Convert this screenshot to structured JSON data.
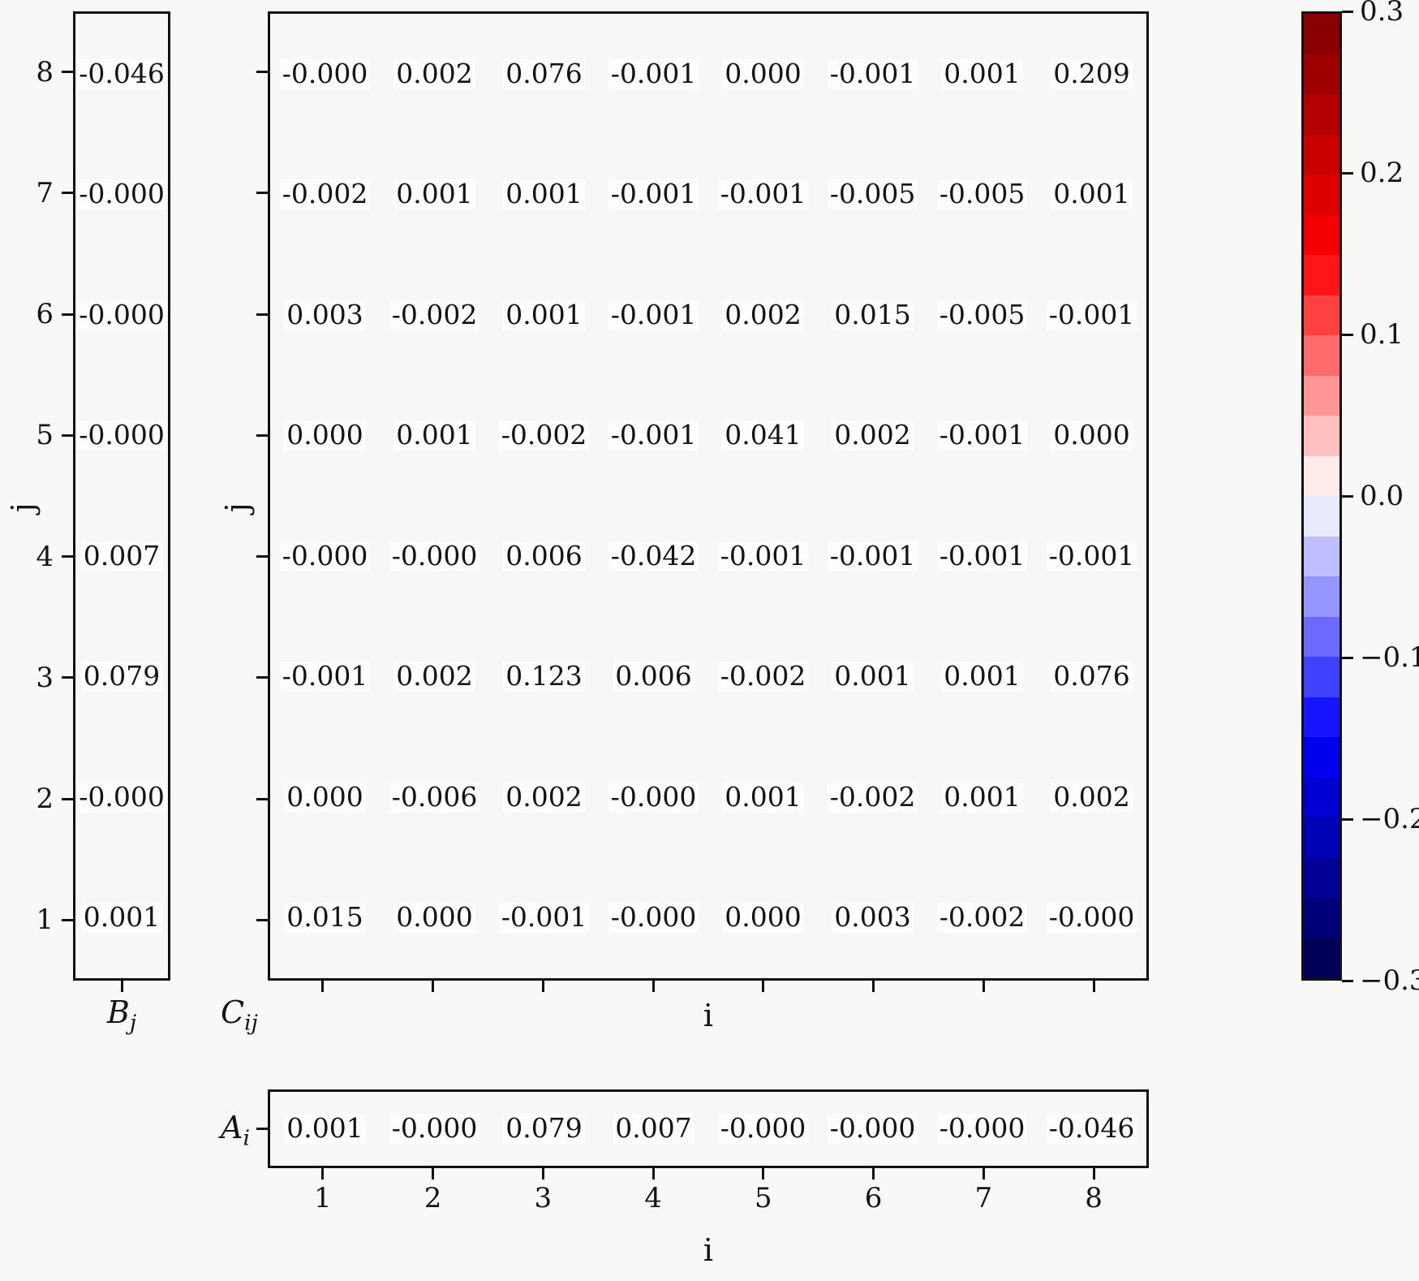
{
  "figure": {
    "background": "#f8f8f6",
    "panel_background": "#f7f7f5",
    "spine_color": "#111111",
    "text_color": "#141414",
    "annotation_bbox_color": "#fdfdfc"
  },
  "left_panel": {
    "label_base": "B",
    "label_sub": "j",
    "ylabel": "j",
    "ytick_labels": [
      "8",
      "7",
      "6",
      "5",
      "4",
      "3",
      "2",
      "1"
    ],
    "values": [
      "-0.046",
      "-0.000",
      "-0.000",
      "-0.000",
      "0.007",
      "0.079",
      "-0.000",
      "0.001"
    ]
  },
  "matrix_panel": {
    "label_base": "C",
    "label_sub": "ij",
    "ylabel": "j",
    "xlabel": "i",
    "rows": [
      [
        "-0.000",
        "0.002",
        "0.076",
        "-0.001",
        "0.000",
        "-0.001",
        "0.001",
        "0.209"
      ],
      [
        "-0.002",
        "0.001",
        "0.001",
        "-0.001",
        "-0.001",
        "-0.005",
        "-0.005",
        "0.001"
      ],
      [
        "0.003",
        "-0.002",
        "0.001",
        "-0.001",
        "0.002",
        "0.015",
        "-0.005",
        "-0.001"
      ],
      [
        "0.000",
        "0.001",
        "-0.002",
        "-0.001",
        "0.041",
        "0.002",
        "-0.001",
        "0.000"
      ],
      [
        "-0.000",
        "-0.000",
        "0.006",
        "-0.042",
        "-0.001",
        "-0.001",
        "-0.001",
        "-0.001"
      ],
      [
        "-0.001",
        "0.002",
        "0.123",
        "0.006",
        "-0.002",
        "0.001",
        "0.001",
        "0.076"
      ],
      [
        "0.000",
        "-0.006",
        "0.002",
        "-0.000",
        "0.001",
        "-0.002",
        "0.001",
        "0.002"
      ],
      [
        "0.015",
        "0.000",
        "-0.001",
        "-0.000",
        "0.000",
        "0.003",
        "-0.002",
        "-0.000"
      ]
    ]
  },
  "bottom_panel": {
    "label_base": "A",
    "label_sub": "i",
    "xlabel": "i",
    "xtick_labels": [
      "1",
      "2",
      "3",
      "4",
      "5",
      "6",
      "7",
      "8"
    ],
    "values": [
      "0.001",
      "-0.000",
      "0.079",
      "0.007",
      "-0.000",
      "-0.000",
      "-0.000",
      "-0.046"
    ]
  },
  "colorbar": {
    "tick_labels": [
      "0.3",
      "0.2",
      "0.1",
      "0.0",
      "−0.1",
      "−0.2",
      "−0.3"
    ],
    "colors_top_to_bottom": [
      "#8a0000",
      "#9f0000",
      "#b50000",
      "#ca0000",
      "#df0000",
      "#f40000",
      "#ff1515",
      "#ff4040",
      "#ff6a6a",
      "#ff9595",
      "#ffbfbf",
      "#ffeaea",
      "#eaeaff",
      "#bfbfff",
      "#9595ff",
      "#6a6aff",
      "#4040ff",
      "#1515ff",
      "#0000f0",
      "#0000d2",
      "#0000b5",
      "#000097",
      "#000079",
      "#00005b"
    ]
  },
  "chart_data": {
    "type": "heatmap",
    "title": "",
    "xlabel": "i",
    "ylabel": "j",
    "x": [
      1,
      2,
      3,
      4,
      5,
      6,
      7,
      8
    ],
    "y_top_to_bottom": [
      8,
      7,
      6,
      5,
      4,
      3,
      2,
      1
    ],
    "colormap": "seismic (blue-white-red), discrete 24 levels",
    "color_range": [
      -0.3,
      0.3
    ],
    "colorbar_ticks": [
      0.3,
      0.2,
      0.1,
      0.0,
      -0.1,
      -0.2,
      -0.3
    ],
    "legend_position": "colorbar right",
    "grid": false,
    "series": {
      "C_ij_rows_top_to_bottom_j8_to_j1": [
        [
          -0.0,
          0.002,
          0.076,
          -0.001,
          0.0,
          -0.001,
          0.001,
          0.209
        ],
        [
          -0.002,
          0.001,
          0.001,
          -0.001,
          -0.001,
          -0.005,
          -0.005,
          0.001
        ],
        [
          0.003,
          -0.002,
          0.001,
          -0.001,
          0.002,
          0.015,
          -0.005,
          -0.001
        ],
        [
          0.0,
          0.001,
          -0.002,
          -0.001,
          0.041,
          0.002,
          -0.001,
          0.0
        ],
        [
          -0.0,
          -0.0,
          0.006,
          -0.042,
          -0.001,
          -0.001,
          -0.001,
          -0.001
        ],
        [
          -0.001,
          0.002,
          0.123,
          0.006,
          -0.002,
          0.001,
          0.001,
          0.076
        ],
        [
          0.0,
          -0.006,
          0.002,
          -0.0,
          0.001,
          -0.002,
          0.001,
          0.002
        ],
        [
          0.015,
          0.0,
          -0.001,
          -0.0,
          0.0,
          0.003,
          -0.002,
          -0.0
        ]
      ],
      "B_j_top_to_bottom_j8_to_j1": [
        -0.046,
        -0.0,
        -0.0,
        -0.0,
        0.007,
        0.079,
        -0.0,
        0.001
      ],
      "A_i_i1_to_i8": [
        0.001,
        -0.0,
        0.079,
        0.007,
        -0.0,
        -0.0,
        -0.0,
        -0.046
      ]
    }
  }
}
